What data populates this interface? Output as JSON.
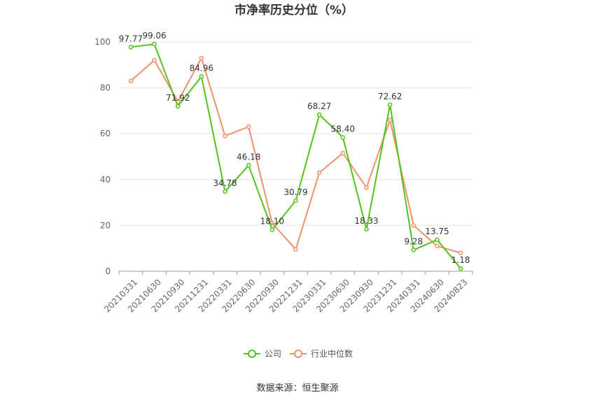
{
  "chart_data": {
    "type": "line",
    "title": "市净率历史分位（%）",
    "categories": [
      "20210331",
      "20210630",
      "20210930",
      "20211231",
      "20220331",
      "20220630",
      "20220930",
      "20221231",
      "20230331",
      "20230630",
      "20230930",
      "20231231",
      "20240331",
      "20240630",
      "20240823"
    ],
    "series": [
      {
        "name": "公司",
        "color": "#52c41a",
        "values": [
          97.77,
          99.06,
          71.92,
          84.96,
          34.78,
          46.18,
          18.1,
          30.79,
          68.27,
          58.4,
          18.33,
          72.62,
          9.28,
          13.75,
          1.18
        ],
        "labels": [
          "97.77",
          "99.06",
          "71.92",
          "84.96",
          "34.78",
          "46.18",
          "18.10",
          "30.79",
          "68.27",
          "58.40",
          "18.33",
          "72.62",
          "9.28",
          "13.75",
          "1.18"
        ]
      },
      {
        "name": "行业中位数",
        "color": "#f0926a",
        "values": [
          83,
          92,
          74,
          93,
          59,
          63,
          21,
          9.5,
          43,
          51.5,
          36.5,
          66,
          20,
          11,
          8
        ]
      }
    ],
    "yticks": [
      "0",
      "20",
      "40",
      "60",
      "80",
      "100"
    ],
    "ylim": [
      0,
      100
    ],
    "grid": true,
    "legend": "bottom-center"
  },
  "source": "数据来源：恒生聚源"
}
